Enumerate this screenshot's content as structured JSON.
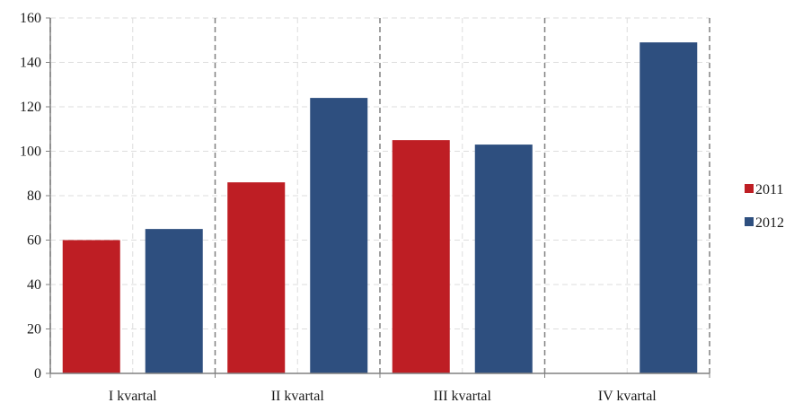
{
  "chart_data": {
    "type": "bar",
    "title": "",
    "xlabel": "",
    "ylabel": "",
    "categories": [
      "I kvartal",
      "II kvartal",
      "III kvartal",
      "IV kvartal"
    ],
    "series": [
      {
        "name": "2011",
        "values": [
          60,
          86,
          105,
          null
        ],
        "color": "#be1e24"
      },
      {
        "name": "2012",
        "values": [
          65,
          124,
          103,
          149
        ],
        "color": "#2e4f7f"
      }
    ],
    "ylim": [
      0,
      160
    ],
    "yticks": [
      0,
      20,
      40,
      60,
      80,
      100,
      120,
      140,
      160
    ],
    "grid": true,
    "legend_position": "right"
  }
}
